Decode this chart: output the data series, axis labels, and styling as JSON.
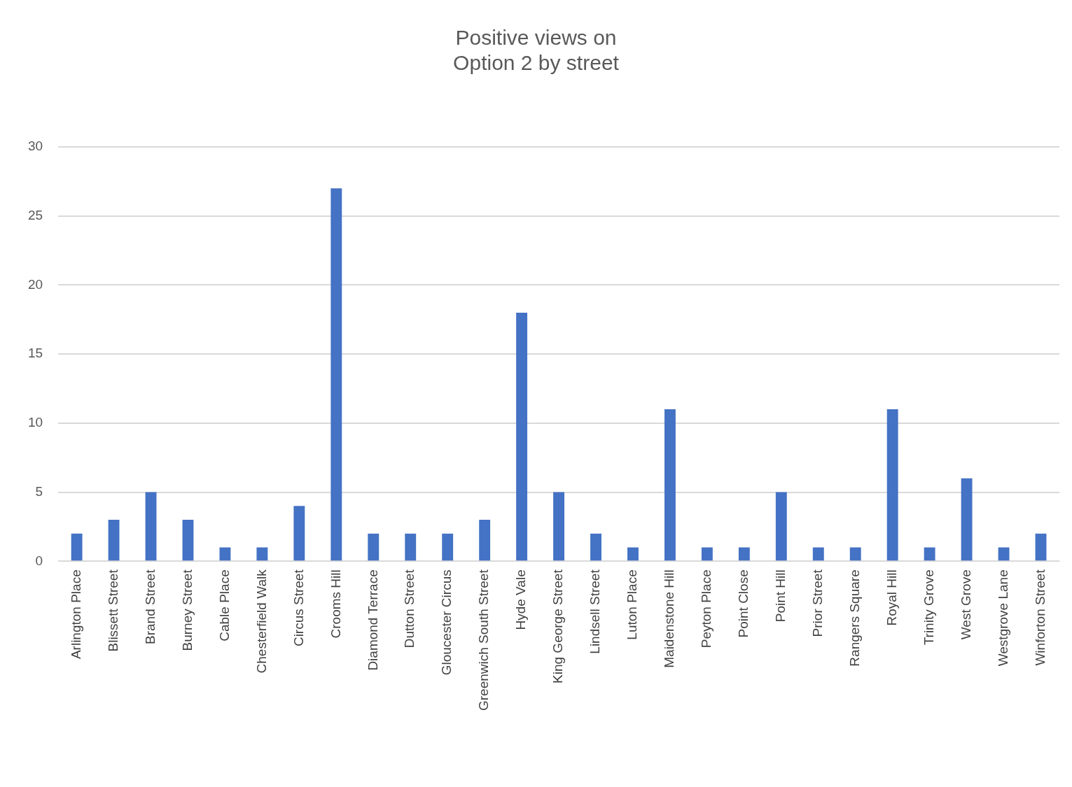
{
  "chart_data": {
    "type": "bar",
    "title": "Positive views on Option 2 by street",
    "categories": [
      "Arlington Place",
      "Blissett Street",
      "Brand Street",
      "Burney Street",
      "Cable Place",
      "Chesterfield Walk",
      "Circus Street",
      "Crooms Hill",
      "Diamond Terrace",
      "Dutton Street",
      "Gloucester Circus",
      "Greenwich South Street",
      "Hyde Vale",
      "King George Street",
      "Lindsell Street",
      "Luton Place",
      "Maidenstone Hill",
      "Peyton Place",
      "Point Close",
      "Point Hill",
      "Prior Street",
      "Rangers Square",
      "Royal Hill",
      "Trinity Grove",
      "West Grove",
      "Westgrove Lane",
      "Winforton Street"
    ],
    "values": [
      2,
      3,
      5,
      3,
      1,
      1,
      4,
      27,
      2,
      2,
      2,
      3,
      18,
      5,
      2,
      1,
      11,
      1,
      1,
      5,
      1,
      1,
      11,
      1,
      6,
      1,
      2
    ],
    "color": "#4472c4",
    "ylim": [
      0,
      30
    ],
    "yticks": [
      0,
      5,
      10,
      15,
      20,
      25,
      30
    ],
    "grid": "y",
    "legend": false
  }
}
